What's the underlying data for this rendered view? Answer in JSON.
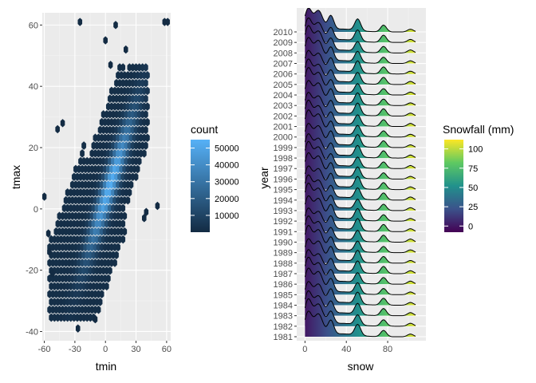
{
  "chart_data": [
    {
      "type": "hexbin",
      "xlabel": "tmin",
      "ylabel": "tmax",
      "x_ticks": [
        -60,
        -30,
        0,
        30,
        60
      ],
      "y_ticks": [
        -40,
        -20,
        0,
        20,
        40,
        60
      ],
      "xlim": [
        -62,
        64
      ],
      "ylim": [
        -43,
        64
      ],
      "fill_scale": {
        "title": "count",
        "breaks": [
          10000,
          20000,
          30000,
          40000,
          50000
        ],
        "labels": [
          "10000",
          "20000",
          "30000",
          "40000",
          "50000"
        ],
        "range": [
          0,
          55000
        ],
        "low_color": "#132b43",
        "high_color": "#56b1f7"
      },
      "outliers": [
        {
          "x": -60,
          "y": 4
        },
        {
          "x": -56,
          "y": -8
        },
        {
          "x": -55,
          "y": -14
        },
        {
          "x": -52,
          "y": -21
        },
        {
          "x": -47,
          "y": 26
        },
        {
          "x": -42,
          "y": 28
        },
        {
          "x": -25,
          "y": 61
        },
        {
          "x": 0,
          "y": 55
        },
        {
          "x": 5,
          "y": 47
        },
        {
          "x": 10,
          "y": 60
        },
        {
          "x": 20,
          "y": 52
        },
        {
          "x": 58,
          "y": 61
        },
        {
          "x": 61,
          "y": 61
        },
        {
          "x": 51,
          "y": 1
        },
        {
          "x": 40,
          "y": -1
        },
        {
          "x": 38,
          "y": -3
        },
        {
          "x": -10,
          "y": -36
        },
        {
          "x": -27,
          "y": -39
        }
      ]
    },
    {
      "type": "ridgeline",
      "xlabel": "snow",
      "ylabel": "year",
      "x_ticks": [
        0,
        40,
        80
      ],
      "xlim": [
        -8,
        117
      ],
      "years": [
        1981,
        1982,
        1983,
        1984,
        1985,
        1986,
        1987,
        1988,
        1989,
        1990,
        1991,
        1992,
        1993,
        1994,
        1995,
        1996,
        1997,
        1998,
        1999,
        2000,
        2001,
        2002,
        2003,
        2004,
        2005,
        2006,
        2007,
        2008,
        2009,
        2010
      ],
      "density_peaks": [
        {
          "snow": 3,
          "height": 1.0
        },
        {
          "snow": 13,
          "height": 0.85
        },
        {
          "snow": 25,
          "height": 0.55
        },
        {
          "snow": 51,
          "height": 0.45
        },
        {
          "snow": 76,
          "height": 0.28
        },
        {
          "snow": 102,
          "height": 0.12
        }
      ],
      "fill_scale": {
        "title": "Snowfall (mm)",
        "breaks": [
          0,
          25,
          50,
          75,
          100
        ],
        "labels": [
          "0",
          "25",
          "50",
          "75",
          "100"
        ],
        "range": [
          -8,
          112
        ],
        "palette": "viridis"
      }
    }
  ]
}
